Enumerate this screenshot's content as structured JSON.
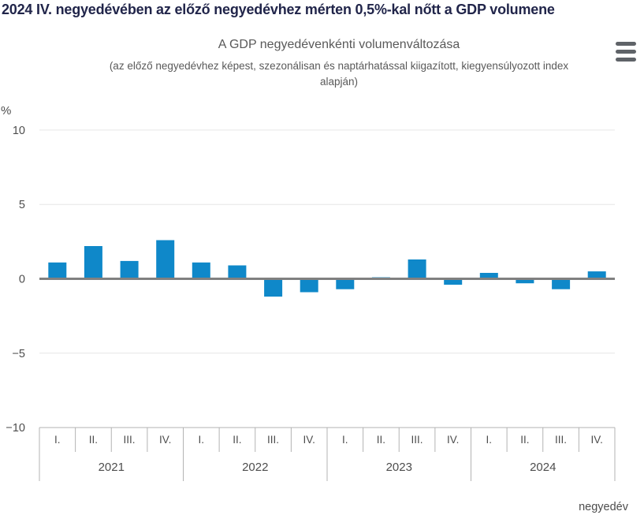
{
  "page": {
    "headline": "2024 IV. negyedévében az előző negyedévhez mérten 0,5%-kal nőtt a GDP volumene"
  },
  "chart": {
    "title": "A GDP negyedévenkénti volumenváltozása",
    "subtitle_line1": "(az előző negyedévhez képest, szezonálisan és naptárhatással kiigazított, kiegyensúlyozott index",
    "subtitle_line2": "alapján)",
    "menu_icon": "hamburger-menu"
  },
  "colors": {
    "bar": "#0f88c9",
    "headline_text": "#21254a",
    "axis_text": "#4d4d4d",
    "zero_line": "#808080",
    "gridline": "#e6e6e6",
    "tick_line": "#b3b3b3"
  },
  "chart_data": {
    "type": "bar",
    "title": "A GDP negyedévenkénti volumenváltozása",
    "subtitle": "(az előző negyedévhez képest, szezonálisan és naptárhatással kiigazított, kiegyensúlyozott index alapján)",
    "unit_label": "%",
    "xlabel": "negyedév",
    "years": [
      "2021",
      "2022",
      "2023",
      "2024"
    ],
    "quarter_labels": [
      "I.",
      "II.",
      "III.",
      "IV."
    ],
    "categories": [
      "2021 I.",
      "2021 II.",
      "2021 III.",
      "2021 IV.",
      "2022 I.",
      "2022 II.",
      "2022 III.",
      "2022 IV.",
      "2023 I.",
      "2023 II.",
      "2023 III.",
      "2023 IV.",
      "2024 I.",
      "2024 II.",
      "2024 III.",
      "2024 IV."
    ],
    "values": [
      1.1,
      2.2,
      1.2,
      2.6,
      1.1,
      0.9,
      -1.2,
      -0.9,
      -0.7,
      0.1,
      1.3,
      -0.4,
      0.4,
      -0.3,
      -0.7,
      0.5
    ],
    "ylim": [
      -10,
      10
    ],
    "yticks": [
      10,
      5,
      0,
      -5,
      -10
    ],
    "bar_color": "#0f88c9",
    "grid": true,
    "legend": "none"
  }
}
